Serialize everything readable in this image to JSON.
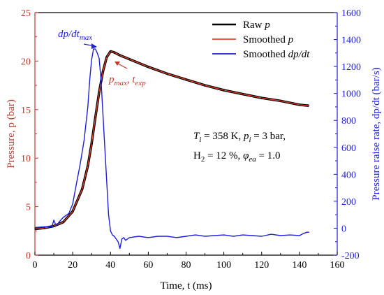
{
  "chart_data": {
    "type": "line",
    "xlabel": "Time, t (ms)",
    "ylabel_left": "Pressure, p (bar)",
    "ylabel_right": "Pressure raise rate, dp/dt (bar/s)",
    "xlim": [
      0,
      160
    ],
    "ylim_left": [
      0,
      25
    ],
    "ylim_right": [
      -200,
      1600
    ],
    "xticks": [
      "0",
      "20",
      "40",
      "60",
      "80",
      "100",
      "120",
      "140",
      "160"
    ],
    "yticks_left": [
      "0",
      "5",
      "10",
      "15",
      "20",
      "25"
    ],
    "yticks_right": [
      "-200",
      "0",
      "200",
      "400",
      "600",
      "800",
      "1000",
      "1200",
      "1400",
      "1600"
    ],
    "legend_position": "top-right",
    "grid": false,
    "colors": {
      "raw": "#000000",
      "smoothed_p": "#e8412a",
      "dpdt": "#1f1fd8",
      "left_axis": "#c0392b",
      "right_axis": "#1f1fd8"
    },
    "series": [
      {
        "name": "Raw p",
        "axis": "left",
        "x": [
          0,
          5,
          10,
          15,
          20,
          25,
          28,
          30,
          32,
          34,
          36,
          38,
          40,
          42,
          45,
          50,
          60,
          70,
          80,
          90,
          100,
          110,
          120,
          130,
          140,
          145
        ],
        "y": [
          2.7,
          2.8,
          3.0,
          3.4,
          4.5,
          6.8,
          9.2,
          11.5,
          14.2,
          16.8,
          18.9,
          20.4,
          21.0,
          20.9,
          20.6,
          20.2,
          19.4,
          18.7,
          18.1,
          17.5,
          17.0,
          16.6,
          16.2,
          15.9,
          15.5,
          15.4
        ]
      },
      {
        "name": "Smoothed p",
        "axis": "left",
        "x": [
          0,
          5,
          10,
          15,
          20,
          25,
          28,
          30,
          32,
          34,
          36,
          38,
          40,
          42,
          45,
          50,
          60,
          70,
          80,
          90,
          100,
          110,
          120,
          130,
          140,
          145
        ],
        "y": [
          2.7,
          2.8,
          3.0,
          3.4,
          4.5,
          6.8,
          9.2,
          11.5,
          14.2,
          16.8,
          18.9,
          20.4,
          21.0,
          20.9,
          20.6,
          20.2,
          19.4,
          18.7,
          18.1,
          17.5,
          17.0,
          16.6,
          16.2,
          15.9,
          15.5,
          15.4
        ]
      },
      {
        "name": "Smoothed dp/dt",
        "axis": "right",
        "x": [
          0,
          5,
          9,
          10,
          11,
          12,
          13,
          15,
          18,
          20,
          22,
          24,
          26,
          28,
          29,
          30,
          31,
          32,
          33,
          34,
          35,
          36,
          37,
          38,
          39,
          40,
          41,
          42,
          43,
          44,
          45,
          46,
          47,
          48,
          50,
          55,
          60,
          65,
          70,
          75,
          80,
          85,
          90,
          95,
          100,
          105,
          110,
          115,
          120,
          125,
          130,
          135,
          140,
          142,
          144,
          145
        ],
        "y": [
          5,
          10,
          12,
          60,
          25,
          30,
          50,
          80,
          110,
          180,
          330,
          480,
          650,
          900,
          1100,
          1250,
          1330,
          1330,
          1300,
          1260,
          1100,
          850,
          600,
          350,
          100,
          -20,
          -50,
          -60,
          -80,
          -100,
          -150,
          -80,
          -70,
          -90,
          -70,
          -60,
          -70,
          -60,
          -60,
          -70,
          -60,
          -50,
          -60,
          -55,
          -50,
          -60,
          -50,
          -55,
          -60,
          -45,
          -55,
          -50,
          -55,
          -40,
          -30,
          -30
        ]
      }
    ],
    "legend": [
      "Raw p",
      "Smoothed p",
      "Smoothed dp/dt"
    ],
    "annotations": {
      "dpdt_max": "dp/dt",
      "dpdt_max_sub": "max",
      "pmax": "p",
      "pmax_sub": "max",
      "texp": "t",
      "texp_sub": "exp",
      "conditions_line1": "Ti = 358 K, pi = 3 bar,",
      "conditions_line2": "H2 = 12 %, φea = 1.0"
    }
  }
}
